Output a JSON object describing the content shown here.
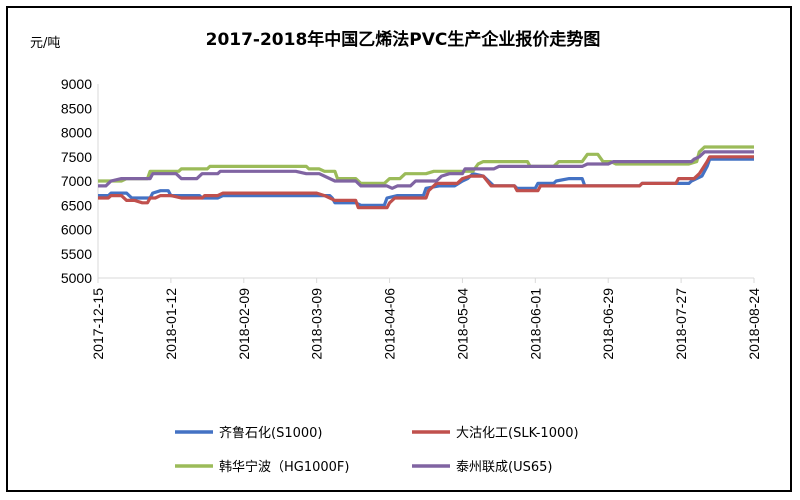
{
  "chart_data": {
    "type": "line",
    "title": "2017-2018年中国乙烯法PVC生产企业报价走势图",
    "unit_label": "元/吨",
    "xlabel": "",
    "ylabel": "",
    "ylim": [
      5000,
      9000
    ],
    "yticks": [
      "9000",
      "8500",
      "8000",
      "7500",
      "7000",
      "6500",
      "6000",
      "5500",
      "5000"
    ],
    "ytick_values": [
      9000,
      8500,
      8000,
      7500,
      7000,
      6500,
      6000,
      5500,
      5000
    ],
    "xlim": [
      "2017-12-15",
      "2018-08-24"
    ],
    "xticks": [
      "2017-12-15",
      "2018-01-12",
      "2018-02-09",
      "2018-03-09",
      "2018-04-06",
      "2018-05-04",
      "2018-06-01",
      "2018-06-29",
      "2018-07-27",
      "2018-08-24"
    ],
    "grid": false,
    "legend_position": "bottom",
    "colors": {
      "s1000": "#4472c4",
      "slk1000": "#c0504d",
      "hg1000f": "#9bbb59",
      "us65": "#8064a2"
    },
    "series": [
      {
        "name": "齐鲁石化(S1000)",
        "color": "#4472c4",
        "points": [
          [
            "2017-12-15",
            6700
          ],
          [
            "2017-12-19",
            6700
          ],
          [
            "2017-12-20",
            6750
          ],
          [
            "2017-12-26",
            6750
          ],
          [
            "2017-12-27",
            6700
          ],
          [
            "2017-12-28",
            6650
          ],
          [
            "2018-01-04",
            6650
          ],
          [
            "2018-01-05",
            6750
          ],
          [
            "2018-01-08",
            6800
          ],
          [
            "2018-01-11",
            6800
          ],
          [
            "2018-01-12",
            6700
          ],
          [
            "2018-01-23",
            6700
          ],
          [
            "2018-01-24",
            6650
          ],
          [
            "2018-01-30",
            6650
          ],
          [
            "2018-02-01",
            6700
          ],
          [
            "2018-03-14",
            6700
          ],
          [
            "2018-03-15",
            6650
          ],
          [
            "2018-03-16",
            6550
          ],
          [
            "2018-03-24",
            6550
          ],
          [
            "2018-03-26",
            6500
          ],
          [
            "2018-04-04",
            6500
          ],
          [
            "2018-04-05",
            6650
          ],
          [
            "2018-04-09",
            6700
          ],
          [
            "2018-04-19",
            6700
          ],
          [
            "2018-04-20",
            6850
          ],
          [
            "2018-04-25",
            6900
          ],
          [
            "2018-05-01",
            6900
          ],
          [
            "2018-05-04",
            7000
          ],
          [
            "2018-05-06",
            7050
          ],
          [
            "2018-05-08",
            7150
          ],
          [
            "2018-05-12",
            7100
          ],
          [
            "2018-05-15",
            6950
          ],
          [
            "2018-05-16",
            6900
          ],
          [
            "2018-05-24",
            6900
          ],
          [
            "2018-05-25",
            6850
          ],
          [
            "2018-06-01",
            6850
          ],
          [
            "2018-06-02",
            6950
          ],
          [
            "2018-06-08",
            6950
          ],
          [
            "2018-06-09",
            7000
          ],
          [
            "2018-06-14",
            7050
          ],
          [
            "2018-06-19",
            7050
          ],
          [
            "2018-06-20",
            6900
          ],
          [
            "2018-07-11",
            6900
          ],
          [
            "2018-07-12",
            6950
          ],
          [
            "2018-07-30",
            6950
          ],
          [
            "2018-07-31",
            7000
          ],
          [
            "2018-08-04",
            7100
          ],
          [
            "2018-08-06",
            7300
          ],
          [
            "2018-08-07",
            7450
          ],
          [
            "2018-08-24",
            7450
          ]
        ]
      },
      {
        "name": "大沽化工(SLK-1000)",
        "color": "#c0504d",
        "points": [
          [
            "2017-12-15",
            6650
          ],
          [
            "2017-12-19",
            6650
          ],
          [
            "2017-12-20",
            6700
          ],
          [
            "2017-12-24",
            6700
          ],
          [
            "2017-12-26",
            6600
          ],
          [
            "2017-12-29",
            6600
          ],
          [
            "2018-01-01",
            6550
          ],
          [
            "2018-01-03",
            6550
          ],
          [
            "2018-01-04",
            6650
          ],
          [
            "2018-01-06",
            6650
          ],
          [
            "2018-01-08",
            6700
          ],
          [
            "2018-01-12",
            6700
          ],
          [
            "2018-01-16",
            6650
          ],
          [
            "2018-01-24",
            6650
          ],
          [
            "2018-01-25",
            6700
          ],
          [
            "2018-01-30",
            6700
          ],
          [
            "2018-02-01",
            6750
          ],
          [
            "2018-03-09",
            6750
          ],
          [
            "2018-03-12",
            6700
          ],
          [
            "2018-03-16",
            6600
          ],
          [
            "2018-03-24",
            6600
          ],
          [
            "2018-03-25",
            6450
          ],
          [
            "2018-04-05",
            6450
          ],
          [
            "2018-04-06",
            6550
          ],
          [
            "2018-04-08",
            6650
          ],
          [
            "2018-04-20",
            6650
          ],
          [
            "2018-04-21",
            6800
          ],
          [
            "2018-04-24",
            6950
          ],
          [
            "2018-05-02",
            6950
          ],
          [
            "2018-05-04",
            7050
          ],
          [
            "2018-05-07",
            7100
          ],
          [
            "2018-05-12",
            7100
          ],
          [
            "2018-05-15",
            6900
          ],
          [
            "2018-05-24",
            6900
          ],
          [
            "2018-05-25",
            6800
          ],
          [
            "2018-06-02",
            6800
          ],
          [
            "2018-06-03",
            6900
          ],
          [
            "2018-07-11",
            6900
          ],
          [
            "2018-07-12",
            6950
          ],
          [
            "2018-07-25",
            6950
          ],
          [
            "2018-07-26",
            7050
          ],
          [
            "2018-08-01",
            7050
          ],
          [
            "2018-08-03",
            7150
          ],
          [
            "2018-08-06",
            7400
          ],
          [
            "2018-08-07",
            7500
          ],
          [
            "2018-08-24",
            7500
          ]
        ]
      },
      {
        "name": "韩华宁波（HG1000F)",
        "color": "#9bbb59",
        "points": [
          [
            "2017-12-15",
            7000
          ],
          [
            "2017-12-24",
            7000
          ],
          [
            "2017-12-26",
            7050
          ],
          [
            "2018-01-03",
            7050
          ],
          [
            "2018-01-04",
            7200
          ],
          [
            "2018-01-15",
            7200
          ],
          [
            "2018-01-16",
            7250
          ],
          [
            "2018-01-26",
            7250
          ],
          [
            "2018-01-27",
            7300
          ],
          [
            "2018-03-05",
            7300
          ],
          [
            "2018-03-06",
            7250
          ],
          [
            "2018-03-10",
            7250
          ],
          [
            "2018-03-12",
            7200
          ],
          [
            "2018-03-16",
            7200
          ],
          [
            "2018-03-17",
            7050
          ],
          [
            "2018-03-24",
            7050
          ],
          [
            "2018-03-26",
            6950
          ],
          [
            "2018-04-04",
            6950
          ],
          [
            "2018-04-06",
            7050
          ],
          [
            "2018-04-10",
            7050
          ],
          [
            "2018-04-12",
            7150
          ],
          [
            "2018-04-20",
            7150
          ],
          [
            "2018-04-23",
            7200
          ],
          [
            "2018-05-08",
            7200
          ],
          [
            "2018-05-10",
            7350
          ],
          [
            "2018-05-12",
            7400
          ],
          [
            "2018-05-29",
            7400
          ],
          [
            "2018-05-30",
            7300
          ],
          [
            "2018-06-08",
            7300
          ],
          [
            "2018-06-10",
            7400
          ],
          [
            "2018-06-19",
            7400
          ],
          [
            "2018-06-21",
            7550
          ],
          [
            "2018-06-25",
            7550
          ],
          [
            "2018-06-27",
            7400
          ],
          [
            "2018-06-30",
            7400
          ],
          [
            "2018-07-02",
            7350
          ],
          [
            "2018-07-30",
            7350
          ],
          [
            "2018-08-02",
            7400
          ],
          [
            "2018-08-03",
            7600
          ],
          [
            "2018-08-05",
            7700
          ],
          [
            "2018-08-24",
            7700
          ]
        ]
      },
      {
        "name": "泰州联成(US65)",
        "color": "#8064a2",
        "points": [
          [
            "2017-12-15",
            6900
          ],
          [
            "2017-12-18",
            6900
          ],
          [
            "2017-12-20",
            7000
          ],
          [
            "2017-12-24",
            7050
          ],
          [
            "2018-01-04",
            7050
          ],
          [
            "2018-01-05",
            7150
          ],
          [
            "2018-01-14",
            7150
          ],
          [
            "2018-01-16",
            7050
          ],
          [
            "2018-01-22",
            7050
          ],
          [
            "2018-01-24",
            7150
          ],
          [
            "2018-01-30",
            7150
          ],
          [
            "2018-01-31",
            7200
          ],
          [
            "2018-02-20",
            7200
          ],
          [
            "2018-03-01",
            7200
          ],
          [
            "2018-03-05",
            7150
          ],
          [
            "2018-03-10",
            7150
          ],
          [
            "2018-03-16",
            7000
          ],
          [
            "2018-03-24",
            7000
          ],
          [
            "2018-03-26",
            6900
          ],
          [
            "2018-04-05",
            6900
          ],
          [
            "2018-04-07",
            6850
          ],
          [
            "2018-04-09",
            6900
          ],
          [
            "2018-04-14",
            6900
          ],
          [
            "2018-04-16",
            7000
          ],
          [
            "2018-04-24",
            7000
          ],
          [
            "2018-04-26",
            7100
          ],
          [
            "2018-04-29",
            7150
          ],
          [
            "2018-05-04",
            7150
          ],
          [
            "2018-05-05",
            7250
          ],
          [
            "2018-05-16",
            7250
          ],
          [
            "2018-05-18",
            7300
          ],
          [
            "2018-06-19",
            7300
          ],
          [
            "2018-06-21",
            7350
          ],
          [
            "2018-06-29",
            7350
          ],
          [
            "2018-07-01",
            7400
          ],
          [
            "2018-07-31",
            7400
          ],
          [
            "2018-08-01",
            7450
          ],
          [
            "2018-08-03",
            7500
          ],
          [
            "2018-08-05",
            7600
          ],
          [
            "2018-08-24",
            7600
          ]
        ]
      }
    ]
  }
}
